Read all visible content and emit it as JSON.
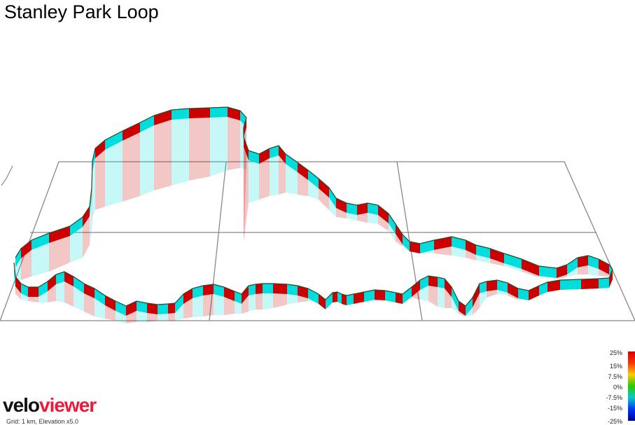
{
  "title": "Stanley Park Loop",
  "footnote": "Grid: 1 km, Elevation x5.0",
  "brand": {
    "part1": "velo",
    "part2": "viewer",
    "color1": "#111111",
    "color2": "#ec1a3d"
  },
  "legend": {
    "labels": [
      "25%",
      "15%",
      "7.5%",
      "0%",
      "-7.5%",
      "-15%",
      "-25%"
    ],
    "colors": [
      "#d40000",
      "#ff3300",
      "#ffcc00",
      "#22cc00",
      "#00cccc",
      "#0033ff",
      "#000099"
    ]
  }
}
